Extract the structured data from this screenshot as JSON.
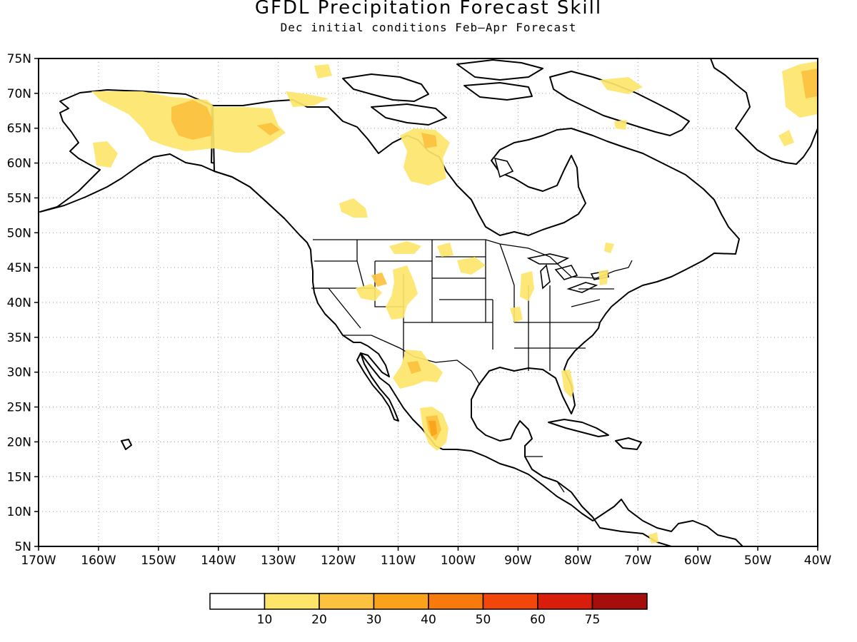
{
  "title": "GFDL Precipitation Forecast Skill",
  "subtitle": "Dec initial conditions  Feb–Apr Forecast",
  "map": {
    "lon_range": [
      -170,
      -40
    ],
    "lat_range": [
      5,
      75
    ],
    "lon_ticks": [
      {
        "value": -170,
        "label": "170W"
      },
      {
        "value": -160,
        "label": "160W"
      },
      {
        "value": -150,
        "label": "150W"
      },
      {
        "value": -140,
        "label": "140W"
      },
      {
        "value": -130,
        "label": "130W"
      },
      {
        "value": -120,
        "label": "120W"
      },
      {
        "value": -110,
        "label": "110W"
      },
      {
        "value": -100,
        "label": "100W"
      },
      {
        "value": -90,
        "label": "90W"
      },
      {
        "value": -80,
        "label": "80W"
      },
      {
        "value": -70,
        "label": "70W"
      },
      {
        "value": -60,
        "label": "60W"
      },
      {
        "value": -50,
        "label": "50W"
      },
      {
        "value": -40,
        "label": "40W"
      }
    ],
    "lat_ticks": [
      {
        "value": 75,
        "label": "75N"
      },
      {
        "value": 70,
        "label": "70N"
      },
      {
        "value": 65,
        "label": "65N"
      },
      {
        "value": 60,
        "label": "60N"
      },
      {
        "value": 55,
        "label": "55N"
      },
      {
        "value": 50,
        "label": "50N"
      },
      {
        "value": 45,
        "label": "45N"
      },
      {
        "value": 40,
        "label": "40N"
      },
      {
        "value": 35,
        "label": "35N"
      },
      {
        "value": 30,
        "label": "30N"
      },
      {
        "value": 25,
        "label": "25N"
      },
      {
        "value": 20,
        "label": "20N"
      },
      {
        "value": 15,
        "label": "15N"
      },
      {
        "value": 10,
        "label": "10N"
      },
      {
        "value": 5,
        "label": "5N"
      }
    ],
    "grid": true,
    "land_fill": "#ffffff",
    "coast_color": "#000000"
  },
  "colorbar": {
    "colors": [
      "#ffffff",
      "#fde56a",
      "#fbc23f",
      "#f9a21a",
      "#f77a0c",
      "#f2460a",
      "#d81e0a",
      "#a50e0a"
    ],
    "labels": [
      "10",
      "20",
      "30",
      "40",
      "50",
      "60",
      "75"
    ]
  }
}
